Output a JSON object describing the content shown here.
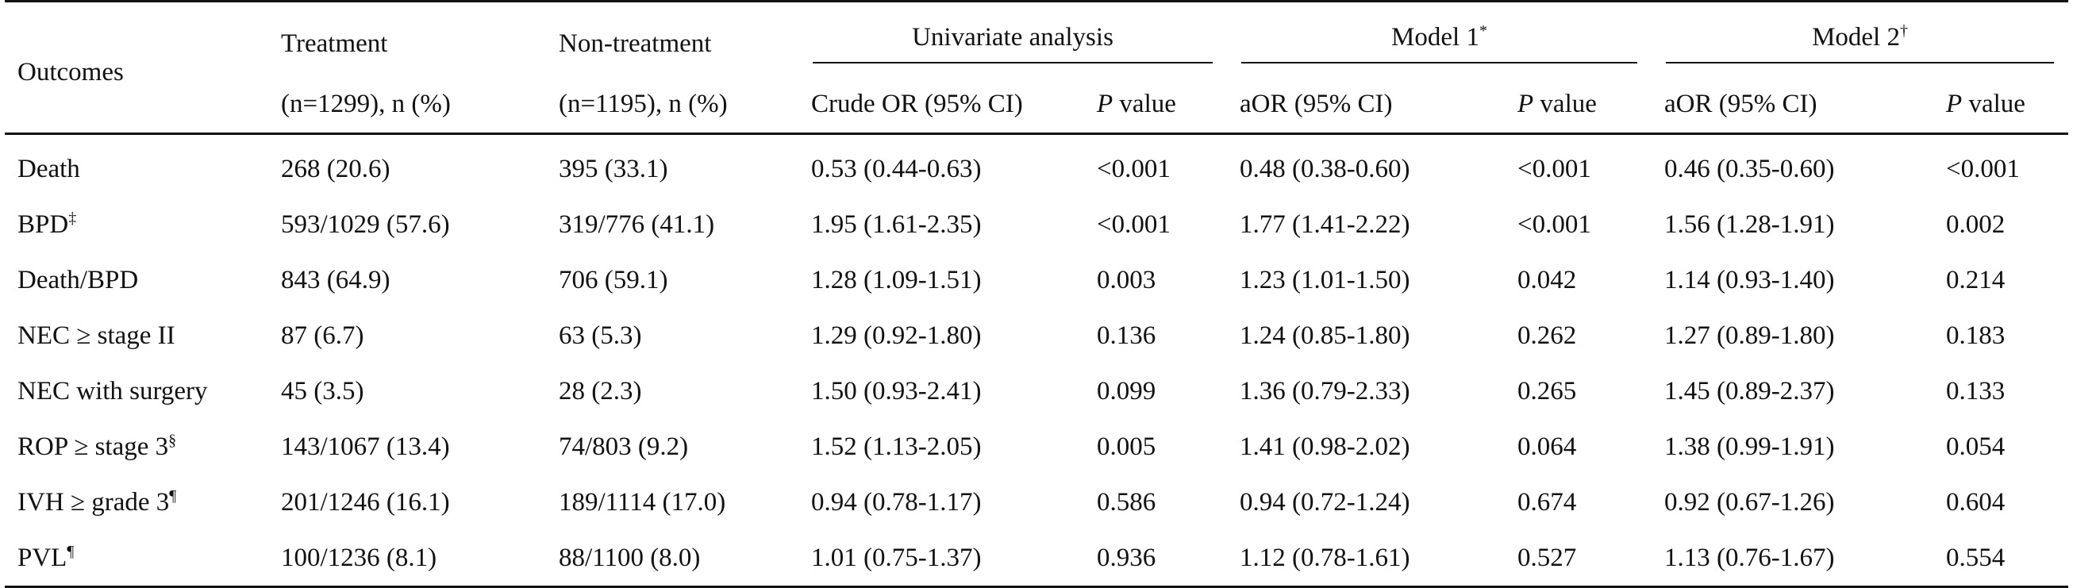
{
  "header": {
    "outcomes": "Outcomes",
    "treatment_line1": "Treatment",
    "treatment_line2": "(n=1299), n (%)",
    "nontreatment_line1": "Non-treatment",
    "nontreatment_line2": "(n=1195), n (%)",
    "univariate": "Univariate analysis",
    "model1": "Model 1",
    "model1_mark": "*",
    "model2": "Model 2",
    "model2_mark": "†",
    "crude_or": "Crude OR (95% CI)",
    "aor": "aOR (95% CI)",
    "p_italic": "P",
    "p_value": " value"
  },
  "rows": [
    {
      "outcome": "Death",
      "mark": "",
      "treatment": "268 (20.6)",
      "nontreatment": "395 (33.1)",
      "crude_or": "0.53 (0.44-0.63)",
      "crude_p": "<0.001",
      "m1_aor": "0.48 (0.38-0.60)",
      "m1_p": "<0.001",
      "m2_aor": "0.46 (0.35-0.60)",
      "m2_p": "<0.001"
    },
    {
      "outcome": "BPD",
      "mark": "‡",
      "treatment": "593/1029 (57.6)",
      "nontreatment": "319/776 (41.1)",
      "crude_or": "1.95 (1.61-2.35)",
      "crude_p": "<0.001",
      "m1_aor": "1.77 (1.41-2.22)",
      "m1_p": "<0.001",
      "m2_aor": "1.56 (1.28-1.91)",
      "m2_p": "0.002"
    },
    {
      "outcome": "Death/BPD",
      "mark": "",
      "treatment": "843 (64.9)",
      "nontreatment": "706 (59.1)",
      "crude_or": "1.28 (1.09-1.51)",
      "crude_p": "0.003",
      "m1_aor": "1.23 (1.01-1.50)",
      "m1_p": "0.042",
      "m2_aor": "1.14 (0.93-1.40)",
      "m2_p": "0.214"
    },
    {
      "outcome": "NEC ≥ stage II",
      "mark": "",
      "treatment": "87 (6.7)",
      "nontreatment": "63 (5.3)",
      "crude_or": "1.29 (0.92-1.80)",
      "crude_p": "0.136",
      "m1_aor": "1.24 (0.85-1.80)",
      "m1_p": "0.262",
      "m2_aor": "1.27 (0.89-1.80)",
      "m2_p": "0.183"
    },
    {
      "outcome": "NEC with surgery",
      "mark": "",
      "treatment": "45 (3.5)",
      "nontreatment": "28 (2.3)",
      "crude_or": "1.50 (0.93-2.41)",
      "crude_p": "0.099",
      "m1_aor": "1.36 (0.79-2.33)",
      "m1_p": "0.265",
      "m2_aor": "1.45 (0.89-2.37)",
      "m2_p": "0.133"
    },
    {
      "outcome": "ROP ≥ stage 3",
      "mark": "§",
      "treatment": "143/1067 (13.4)",
      "nontreatment": "74/803 (9.2)",
      "crude_or": "1.52 (1.13-2.05)",
      "crude_p": "0.005",
      "m1_aor": "1.41 (0.98-2.02)",
      "m1_p": "0.064",
      "m2_aor": "1.38 (0.99-1.91)",
      "m2_p": "0.054"
    },
    {
      "outcome": "IVH ≥ grade 3",
      "mark": "¶",
      "treatment": "201/1246 (16.1)",
      "nontreatment": "189/1114 (17.0)",
      "crude_or": "0.94 (0.78-1.17)",
      "crude_p": "0.586",
      "m1_aor": "0.94 (0.72-1.24)",
      "m1_p": "0.674",
      "m2_aor": "0.92 (0.67-1.26)",
      "m2_p": "0.604"
    },
    {
      "outcome": "PVL",
      "mark": "¶",
      "treatment": "100/1236 (8.1)",
      "nontreatment": "88/1100 (8.0)",
      "crude_or": "1.01 (0.75-1.37)",
      "crude_p": "0.936",
      "m1_aor": "1.12 (0.78-1.61)",
      "m1_p": "0.527",
      "m2_aor": "1.13 (0.76-1.67)",
      "m2_p": "0.554"
    }
  ]
}
